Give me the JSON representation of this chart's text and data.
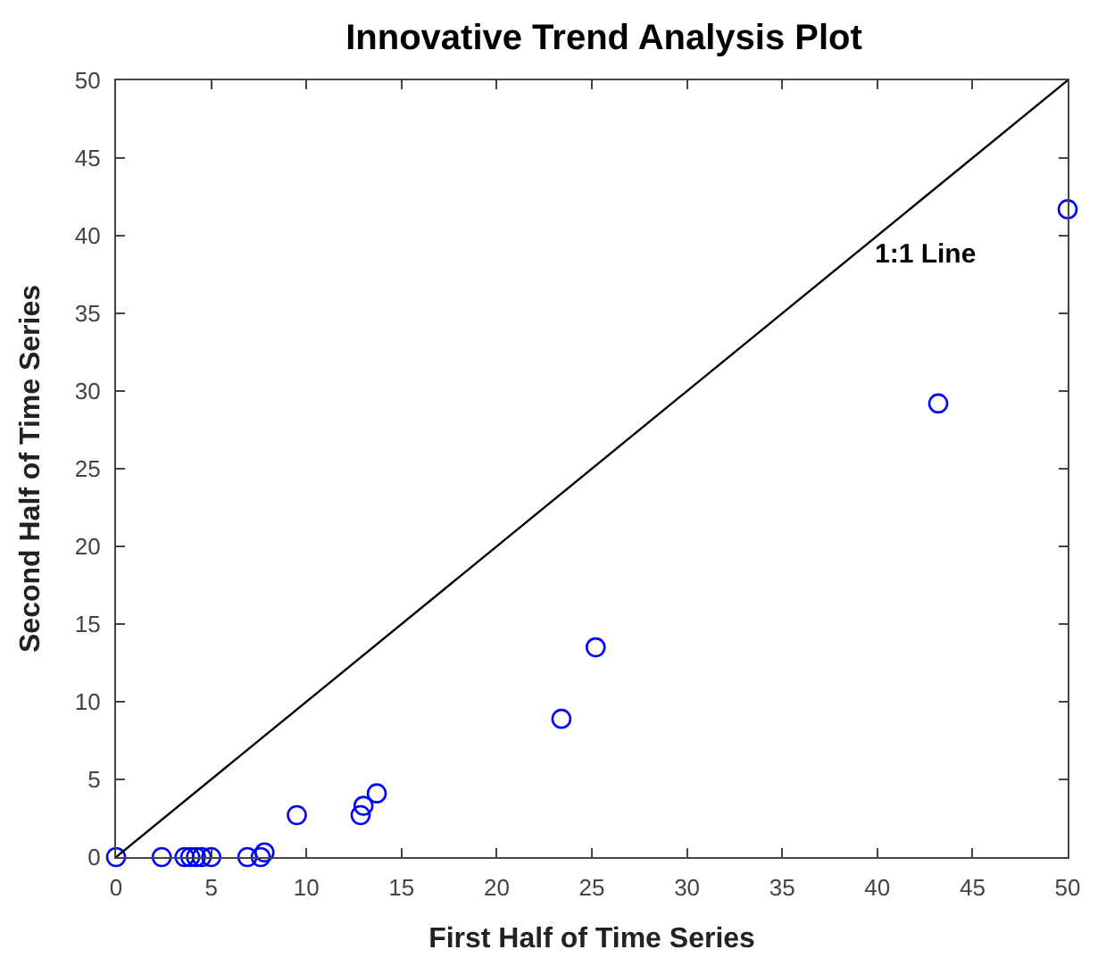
{
  "chart_data": {
    "type": "scatter",
    "title": "Innovative Trend Analysis Plot",
    "xlabel": "First Half of Time Series",
    "ylabel": "Second Half of Time Series",
    "series": [
      {
        "color": "#0000ff",
        "marker": "circle",
        "x": [
          0,
          2.4,
          3.6,
          3.9,
          4.2,
          4.5,
          5.0,
          6.9,
          7.6,
          7.8,
          9.5,
          12.85,
          13.0,
          13.7,
          23.4,
          25.2,
          43.2,
          50
        ],
        "values": [
          0,
          0,
          0,
          0,
          0,
          0,
          0,
          0,
          0,
          0.3,
          2.7,
          2.7,
          3.3,
          4.1,
          8.9,
          13.5,
          29.2,
          41.7
        ]
      },
      {
        "type": "line",
        "color": "#000000",
        "marker": "none",
        "line_style": "solid",
        "x": [
          0,
          50
        ],
        "values": [
          0,
          50
        ]
      }
    ],
    "annotations": [
      "1:1 Line"
    ],
    "xlim": [
      0,
      50
    ],
    "ylim": [
      0,
      50
    ],
    "xticks": [
      0,
      5,
      10,
      15,
      20,
      25,
      30,
      35,
      40,
      45,
      50
    ],
    "yticks": [
      0,
      5,
      10,
      15,
      20,
      25,
      30,
      35,
      40,
      45,
      50
    ]
  }
}
